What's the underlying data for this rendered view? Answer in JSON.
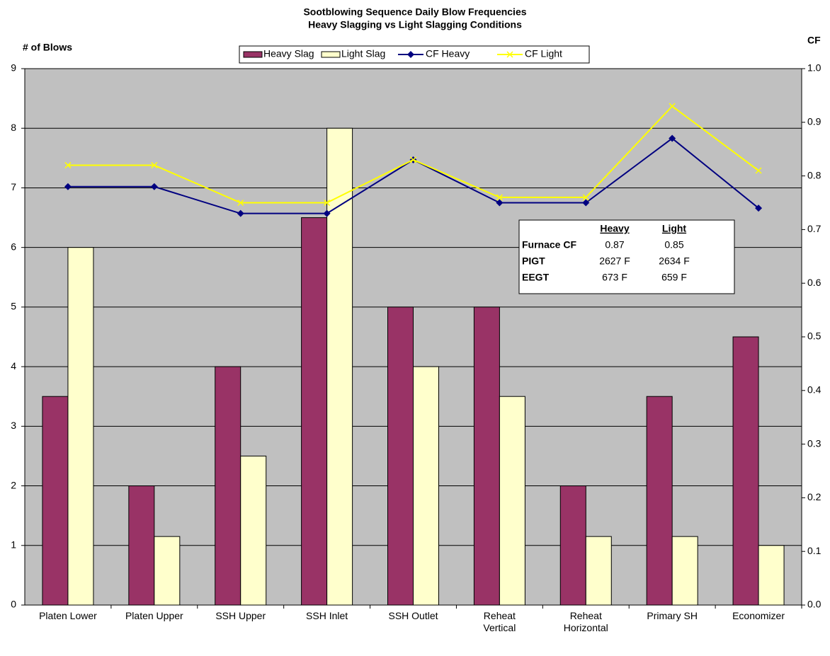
{
  "chart_data": {
    "type": "bar",
    "title": "Sootblowing Sequence Daily Blow Frequencies",
    "subtitle": "Heavy Slagging vs Light Slagging Conditions",
    "y_label": "# of Blows",
    "y2_label": "CF",
    "categories": [
      "Platen Lower",
      "Platen Upper",
      "SSH Upper",
      "SSH Inlet",
      "SSH Outlet",
      "Reheat\nVertical",
      "Reheat\nHorizontal",
      "Primary SH",
      "Economizer"
    ],
    "series": [
      {
        "name": "Heavy Slag",
        "type": "bar",
        "color": "#993366",
        "values": [
          3.5,
          2,
          4,
          6.5,
          5,
          5,
          2,
          3.5,
          4.5
        ]
      },
      {
        "name": "Light Slag",
        "type": "bar",
        "color": "#ffffcc",
        "values": [
          6,
          1.15,
          2.5,
          8,
          4,
          3.5,
          1.15,
          1.15,
          1
        ]
      },
      {
        "name": "CF Heavy",
        "type": "line",
        "axis": "y2",
        "marker": "diamond",
        "color": "#000080",
        "values": [
          0.78,
          0.78,
          0.73,
          0.73,
          0.83,
          0.75,
          0.75,
          0.87,
          0.74
        ]
      },
      {
        "name": "CF Light",
        "type": "line",
        "axis": "y2",
        "marker": "x",
        "color": "#ffff00",
        "values": [
          0.82,
          0.82,
          0.75,
          0.75,
          0.83,
          0.76,
          0.76,
          0.93,
          0.81
        ]
      }
    ],
    "ylim": [
      0,
      9
    ],
    "yticks": [
      0,
      1,
      2,
      3,
      4,
      5,
      6,
      7,
      8,
      9
    ],
    "y2lim": [
      0,
      1
    ],
    "y2ticks": [
      {
        "value": 0,
        "label": "0.0"
      },
      0.1,
      0.2,
      0.3,
      0.4,
      0.5,
      0.6,
      0.7,
      0.8,
      0.9,
      {
        "value": 1,
        "label": "1.0"
      }
    ],
    "grid": true,
    "inset_table": {
      "columns": [
        "Heavy",
        "Light"
      ],
      "rows": [
        {
          "label": "Furnace CF",
          "values": [
            "0.87",
            "0.85"
          ]
        },
        {
          "label": "PIGT",
          "values": [
            "2627 F",
            "2634 F"
          ]
        },
        {
          "label": "EEGT",
          "values": [
            "673 F",
            "659 F"
          ]
        }
      ]
    }
  }
}
